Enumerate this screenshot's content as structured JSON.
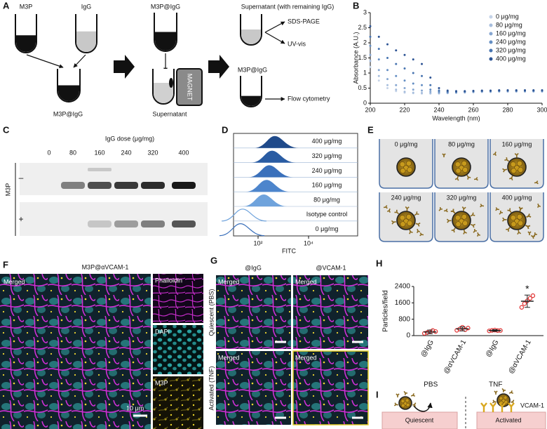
{
  "panel_labels": [
    "A",
    "B",
    "C",
    "D",
    "E",
    "F",
    "G",
    "H",
    "I"
  ],
  "panel_a": {
    "tube_1": "M3P",
    "tube_2": "IgG",
    "mixed": "M3P@IgG",
    "step_2": "M3P@IgG",
    "magnet": "MAGNET",
    "supernatant": "Supernatant",
    "step_3": "Supernatant (with remaining IgG)",
    "sds_page": "SDS-PAGE",
    "uv_vis": "UV-vis",
    "pellet": "M3P@IgG",
    "flow": "Flow cytometry"
  },
  "chart_data": [
    {
      "type": "dotted_line",
      "xlabel": "Wavelength (nm)",
      "ylabel": "Absorbance (A.U.)",
      "x": [
        200,
        205,
        210,
        215,
        220,
        225,
        230,
        235,
        240,
        245,
        250,
        255,
        260,
        265,
        270,
        275,
        280,
        285,
        290,
        295,
        300
      ],
      "series": [
        {
          "name": "0 μg/mg",
          "color": "#c5d3e8",
          "values": [
            1.2,
            0.75,
            0.5,
            0.4,
            0.35,
            0.33,
            0.32,
            0.32,
            0.32,
            0.33,
            0.34,
            0.35,
            0.36,
            0.37,
            0.37,
            0.38,
            0.38,
            0.38,
            0.38,
            0.38,
            0.38
          ]
        },
        {
          "name": "80 μg/mg",
          "color": "#a7bedd",
          "values": [
            1.4,
            0.9,
            0.6,
            0.45,
            0.38,
            0.35,
            0.34,
            0.33,
            0.33,
            0.34,
            0.35,
            0.36,
            0.37,
            0.38,
            0.38,
            0.39,
            0.39,
            0.39,
            0.39,
            0.39,
            0.39
          ]
        },
        {
          "name": "160 μg/mg",
          "color": "#86a6d1",
          "values": [
            1.6,
            1.1,
            0.8,
            0.6,
            0.5,
            0.45,
            0.42,
            0.38,
            0.35,
            0.35,
            0.36,
            0.37,
            0.38,
            0.39,
            0.39,
            0.4,
            0.4,
            0.4,
            0.4,
            0.4,
            0.4
          ]
        },
        {
          "name": "240 μg/mg",
          "color": "#648ec3",
          "values": [
            1.9,
            1.45,
            1.1,
            0.9,
            0.75,
            0.65,
            0.6,
            0.45,
            0.38,
            0.37,
            0.37,
            0.38,
            0.39,
            0.4,
            0.4,
            0.41,
            0.41,
            0.41,
            0.41,
            0.41,
            0.41
          ]
        },
        {
          "name": "320 μg/mg",
          "color": "#4774b0",
          "values": [
            2.2,
            1.8,
            1.5,
            1.3,
            1.15,
            1.0,
            0.9,
            0.6,
            0.42,
            0.39,
            0.38,
            0.39,
            0.4,
            0.41,
            0.41,
            0.42,
            0.42,
            0.42,
            0.42,
            0.42,
            0.42
          ]
        },
        {
          "name": "400 μg/mg",
          "color": "#2d5494",
          "values": [
            2.55,
            2.2,
            1.95,
            1.75,
            1.6,
            1.45,
            1.3,
            0.85,
            0.5,
            0.42,
            0.4,
            0.4,
            0.41,
            0.42,
            0.42,
            0.43,
            0.43,
            0.43,
            0.43,
            0.43,
            0.43
          ]
        }
      ],
      "xlim": [
        200,
        300
      ],
      "xticks": [
        200,
        220,
        240,
        260,
        280,
        300
      ],
      "ylim": [
        0,
        3
      ],
      "yticks": [
        0,
        0.5,
        1,
        1.5,
        2,
        2.5,
        3
      ],
      "legend": "top-right"
    },
    {
      "type": "dot",
      "ylabel": "Particles/field",
      "categories": [
        "@IgG",
        "@αVCAM-1",
        "@IgG",
        "@αVCAM-1"
      ],
      "groups": [
        "PBS",
        "TNF"
      ],
      "values": [
        180,
        330,
        250,
        1680
      ],
      "errors": [
        90,
        100,
        40,
        300
      ],
      "points": [
        [
          110,
          150,
          190,
          250,
          200
        ],
        [
          260,
          320,
          410,
          290,
          370
        ],
        [
          230,
          255,
          270,
          245,
          250
        ],
        [
          1380,
          1560,
          1700,
          1820,
          1950
        ]
      ],
      "color": "#e03030",
      "ylim": [
        0,
        2400
      ],
      "yticks": [
        0,
        800,
        1600,
        2400
      ],
      "annotation": "*"
    }
  ],
  "panel_c": {
    "title": "IgG dose (μg/mg)",
    "lanes": [
      "0",
      "80",
      "160",
      "240",
      "320",
      "400"
    ],
    "row_title": "M3P",
    "rows": [
      "–",
      "+"
    ]
  },
  "panel_d": {
    "rows": [
      "400 μg/mg",
      "320 μg/mg",
      "240 μg/mg",
      "160 μg/mg",
      "80 μg/mg",
      "Isotype control",
      "0 μg/mg"
    ],
    "xticks": [
      "10²",
      "10⁴"
    ],
    "xlabel": "FITC"
  },
  "panel_e": {
    "labels": [
      "0 μg/mg",
      "80 μg/mg",
      "160 μg/mg",
      "240 μg/mg",
      "320 μg/mg",
      "400 μg/mg"
    ]
  },
  "panel_f": {
    "title": "M3P@αVCAM-1",
    "main_label": "Merged",
    "channels": [
      "Phalloidin",
      "DAPI",
      "M3P"
    ],
    "scale_bar": "10 μm"
  },
  "panel_g": {
    "columns": [
      "@IgG",
      "@VCAM-1"
    ],
    "rows": [
      "Quiescent (PBS)",
      "Activated (TNF)"
    ],
    "image_label": "Merged"
  },
  "panel_i": {
    "left": "Quiescent",
    "right": "Activated",
    "receptor": "VCAM-1"
  }
}
